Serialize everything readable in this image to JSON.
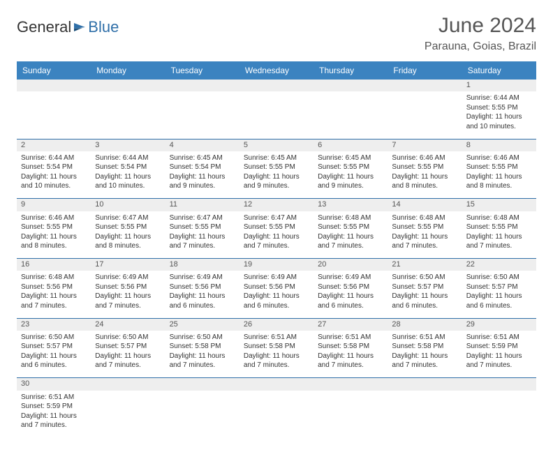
{
  "logo": {
    "text_dark": "General",
    "text_blue": "Blue"
  },
  "title": "June 2024",
  "location": "Parauna, Goias, Brazil",
  "colors": {
    "header_bg": "#3b83c0",
    "header_text": "#ffffff",
    "daynum_bg": "#eeeeee",
    "border": "#2f6fa8",
    "body_text": "#333333",
    "title_text": "#555555"
  },
  "day_headers": [
    "Sunday",
    "Monday",
    "Tuesday",
    "Wednesday",
    "Thursday",
    "Friday",
    "Saturday"
  ],
  "weeks": [
    {
      "nums": [
        "",
        "",
        "",
        "",
        "",
        "",
        "1"
      ],
      "cells": [
        null,
        null,
        null,
        null,
        null,
        null,
        {
          "sunrise": "Sunrise: 6:44 AM",
          "sunset": "Sunset: 5:55 PM",
          "day1": "Daylight: 11 hours",
          "day2": "and 10 minutes."
        }
      ]
    },
    {
      "nums": [
        "2",
        "3",
        "4",
        "5",
        "6",
        "7",
        "8"
      ],
      "cells": [
        {
          "sunrise": "Sunrise: 6:44 AM",
          "sunset": "Sunset: 5:54 PM",
          "day1": "Daylight: 11 hours",
          "day2": "and 10 minutes."
        },
        {
          "sunrise": "Sunrise: 6:44 AM",
          "sunset": "Sunset: 5:54 PM",
          "day1": "Daylight: 11 hours",
          "day2": "and 10 minutes."
        },
        {
          "sunrise": "Sunrise: 6:45 AM",
          "sunset": "Sunset: 5:54 PM",
          "day1": "Daylight: 11 hours",
          "day2": "and 9 minutes."
        },
        {
          "sunrise": "Sunrise: 6:45 AM",
          "sunset": "Sunset: 5:55 PM",
          "day1": "Daylight: 11 hours",
          "day2": "and 9 minutes."
        },
        {
          "sunrise": "Sunrise: 6:45 AM",
          "sunset": "Sunset: 5:55 PM",
          "day1": "Daylight: 11 hours",
          "day2": "and 9 minutes."
        },
        {
          "sunrise": "Sunrise: 6:46 AM",
          "sunset": "Sunset: 5:55 PM",
          "day1": "Daylight: 11 hours",
          "day2": "and 8 minutes."
        },
        {
          "sunrise": "Sunrise: 6:46 AM",
          "sunset": "Sunset: 5:55 PM",
          "day1": "Daylight: 11 hours",
          "day2": "and 8 minutes."
        }
      ]
    },
    {
      "nums": [
        "9",
        "10",
        "11",
        "12",
        "13",
        "14",
        "15"
      ],
      "cells": [
        {
          "sunrise": "Sunrise: 6:46 AM",
          "sunset": "Sunset: 5:55 PM",
          "day1": "Daylight: 11 hours",
          "day2": "and 8 minutes."
        },
        {
          "sunrise": "Sunrise: 6:47 AM",
          "sunset": "Sunset: 5:55 PM",
          "day1": "Daylight: 11 hours",
          "day2": "and 8 minutes."
        },
        {
          "sunrise": "Sunrise: 6:47 AM",
          "sunset": "Sunset: 5:55 PM",
          "day1": "Daylight: 11 hours",
          "day2": "and 7 minutes."
        },
        {
          "sunrise": "Sunrise: 6:47 AM",
          "sunset": "Sunset: 5:55 PM",
          "day1": "Daylight: 11 hours",
          "day2": "and 7 minutes."
        },
        {
          "sunrise": "Sunrise: 6:48 AM",
          "sunset": "Sunset: 5:55 PM",
          "day1": "Daylight: 11 hours",
          "day2": "and 7 minutes."
        },
        {
          "sunrise": "Sunrise: 6:48 AM",
          "sunset": "Sunset: 5:55 PM",
          "day1": "Daylight: 11 hours",
          "day2": "and 7 minutes."
        },
        {
          "sunrise": "Sunrise: 6:48 AM",
          "sunset": "Sunset: 5:55 PM",
          "day1": "Daylight: 11 hours",
          "day2": "and 7 minutes."
        }
      ]
    },
    {
      "nums": [
        "16",
        "17",
        "18",
        "19",
        "20",
        "21",
        "22"
      ],
      "cells": [
        {
          "sunrise": "Sunrise: 6:48 AM",
          "sunset": "Sunset: 5:56 PM",
          "day1": "Daylight: 11 hours",
          "day2": "and 7 minutes."
        },
        {
          "sunrise": "Sunrise: 6:49 AM",
          "sunset": "Sunset: 5:56 PM",
          "day1": "Daylight: 11 hours",
          "day2": "and 7 minutes."
        },
        {
          "sunrise": "Sunrise: 6:49 AM",
          "sunset": "Sunset: 5:56 PM",
          "day1": "Daylight: 11 hours",
          "day2": "and 6 minutes."
        },
        {
          "sunrise": "Sunrise: 6:49 AM",
          "sunset": "Sunset: 5:56 PM",
          "day1": "Daylight: 11 hours",
          "day2": "and 6 minutes."
        },
        {
          "sunrise": "Sunrise: 6:49 AM",
          "sunset": "Sunset: 5:56 PM",
          "day1": "Daylight: 11 hours",
          "day2": "and 6 minutes."
        },
        {
          "sunrise": "Sunrise: 6:50 AM",
          "sunset": "Sunset: 5:57 PM",
          "day1": "Daylight: 11 hours",
          "day2": "and 6 minutes."
        },
        {
          "sunrise": "Sunrise: 6:50 AM",
          "sunset": "Sunset: 5:57 PM",
          "day1": "Daylight: 11 hours",
          "day2": "and 6 minutes."
        }
      ]
    },
    {
      "nums": [
        "23",
        "24",
        "25",
        "26",
        "27",
        "28",
        "29"
      ],
      "cells": [
        {
          "sunrise": "Sunrise: 6:50 AM",
          "sunset": "Sunset: 5:57 PM",
          "day1": "Daylight: 11 hours",
          "day2": "and 6 minutes."
        },
        {
          "sunrise": "Sunrise: 6:50 AM",
          "sunset": "Sunset: 5:57 PM",
          "day1": "Daylight: 11 hours",
          "day2": "and 7 minutes."
        },
        {
          "sunrise": "Sunrise: 6:50 AM",
          "sunset": "Sunset: 5:58 PM",
          "day1": "Daylight: 11 hours",
          "day2": "and 7 minutes."
        },
        {
          "sunrise": "Sunrise: 6:51 AM",
          "sunset": "Sunset: 5:58 PM",
          "day1": "Daylight: 11 hours",
          "day2": "and 7 minutes."
        },
        {
          "sunrise": "Sunrise: 6:51 AM",
          "sunset": "Sunset: 5:58 PM",
          "day1": "Daylight: 11 hours",
          "day2": "and 7 minutes."
        },
        {
          "sunrise": "Sunrise: 6:51 AM",
          "sunset": "Sunset: 5:58 PM",
          "day1": "Daylight: 11 hours",
          "day2": "and 7 minutes."
        },
        {
          "sunrise": "Sunrise: 6:51 AM",
          "sunset": "Sunset: 5:59 PM",
          "day1": "Daylight: 11 hours",
          "day2": "and 7 minutes."
        }
      ]
    },
    {
      "nums": [
        "30",
        "",
        "",
        "",
        "",
        "",
        ""
      ],
      "cells": [
        {
          "sunrise": "Sunrise: 6:51 AM",
          "sunset": "Sunset: 5:59 PM",
          "day1": "Daylight: 11 hours",
          "day2": "and 7 minutes."
        },
        null,
        null,
        null,
        null,
        null,
        null
      ]
    }
  ]
}
